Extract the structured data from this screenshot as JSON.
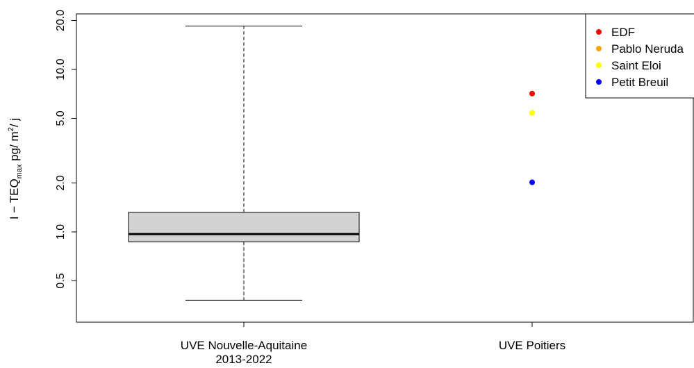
{
  "chart_data": {
    "type": "box",
    "scale": "log",
    "ylim": [
      0.35,
      21
    ],
    "yticks": [
      0.5,
      1.0,
      2.0,
      5.0,
      10.0,
      20.0
    ],
    "ytick_labels": [
      "0.5",
      "1.0",
      "2.0",
      "5.0",
      "10.0",
      "20.0"
    ],
    "ylabel": {
      "prefix": "I − TEQ",
      "subscript": "max",
      "unit_a": " pg/ m",
      "superscript": "2",
      "unit_b": "/ j"
    },
    "categories": [
      {
        "lines": [
          "UVE Nouvelle-Aquitaine",
          "2013-2022"
        ]
      },
      {
        "lines": [
          "UVE Poitiers"
        ]
      }
    ],
    "box": {
      "category_index": 0,
      "whisker_low": 0.38,
      "q1": 0.87,
      "median": 0.97,
      "q3": 1.32,
      "whisker_high": 18.5
    },
    "points": [
      {
        "name": "EDF",
        "value": 7.1,
        "color": "#ff0000",
        "category_index": 1
      },
      {
        "name": "Pablo Neruda",
        "value": 5.4,
        "color": "#ffa500",
        "category_index": 1
      },
      {
        "name": "Saint Eloi",
        "value": 5.4,
        "color": "#ffff00",
        "category_index": 1
      },
      {
        "name": "Petit Breuil",
        "value": 2.02,
        "color": "#0000ff",
        "category_index": 1
      }
    ],
    "legend": {
      "placement": "top-right",
      "entries": [
        {
          "label": "EDF",
          "color": "#ff0000"
        },
        {
          "label": "Pablo Neruda",
          "color": "#ffa500"
        },
        {
          "label": "Saint Eloi",
          "color": "#ffff00"
        },
        {
          "label": "Petit Breuil",
          "color": "#0000ff"
        }
      ]
    },
    "box_fill": "#d3d3d3",
    "grid": false
  }
}
